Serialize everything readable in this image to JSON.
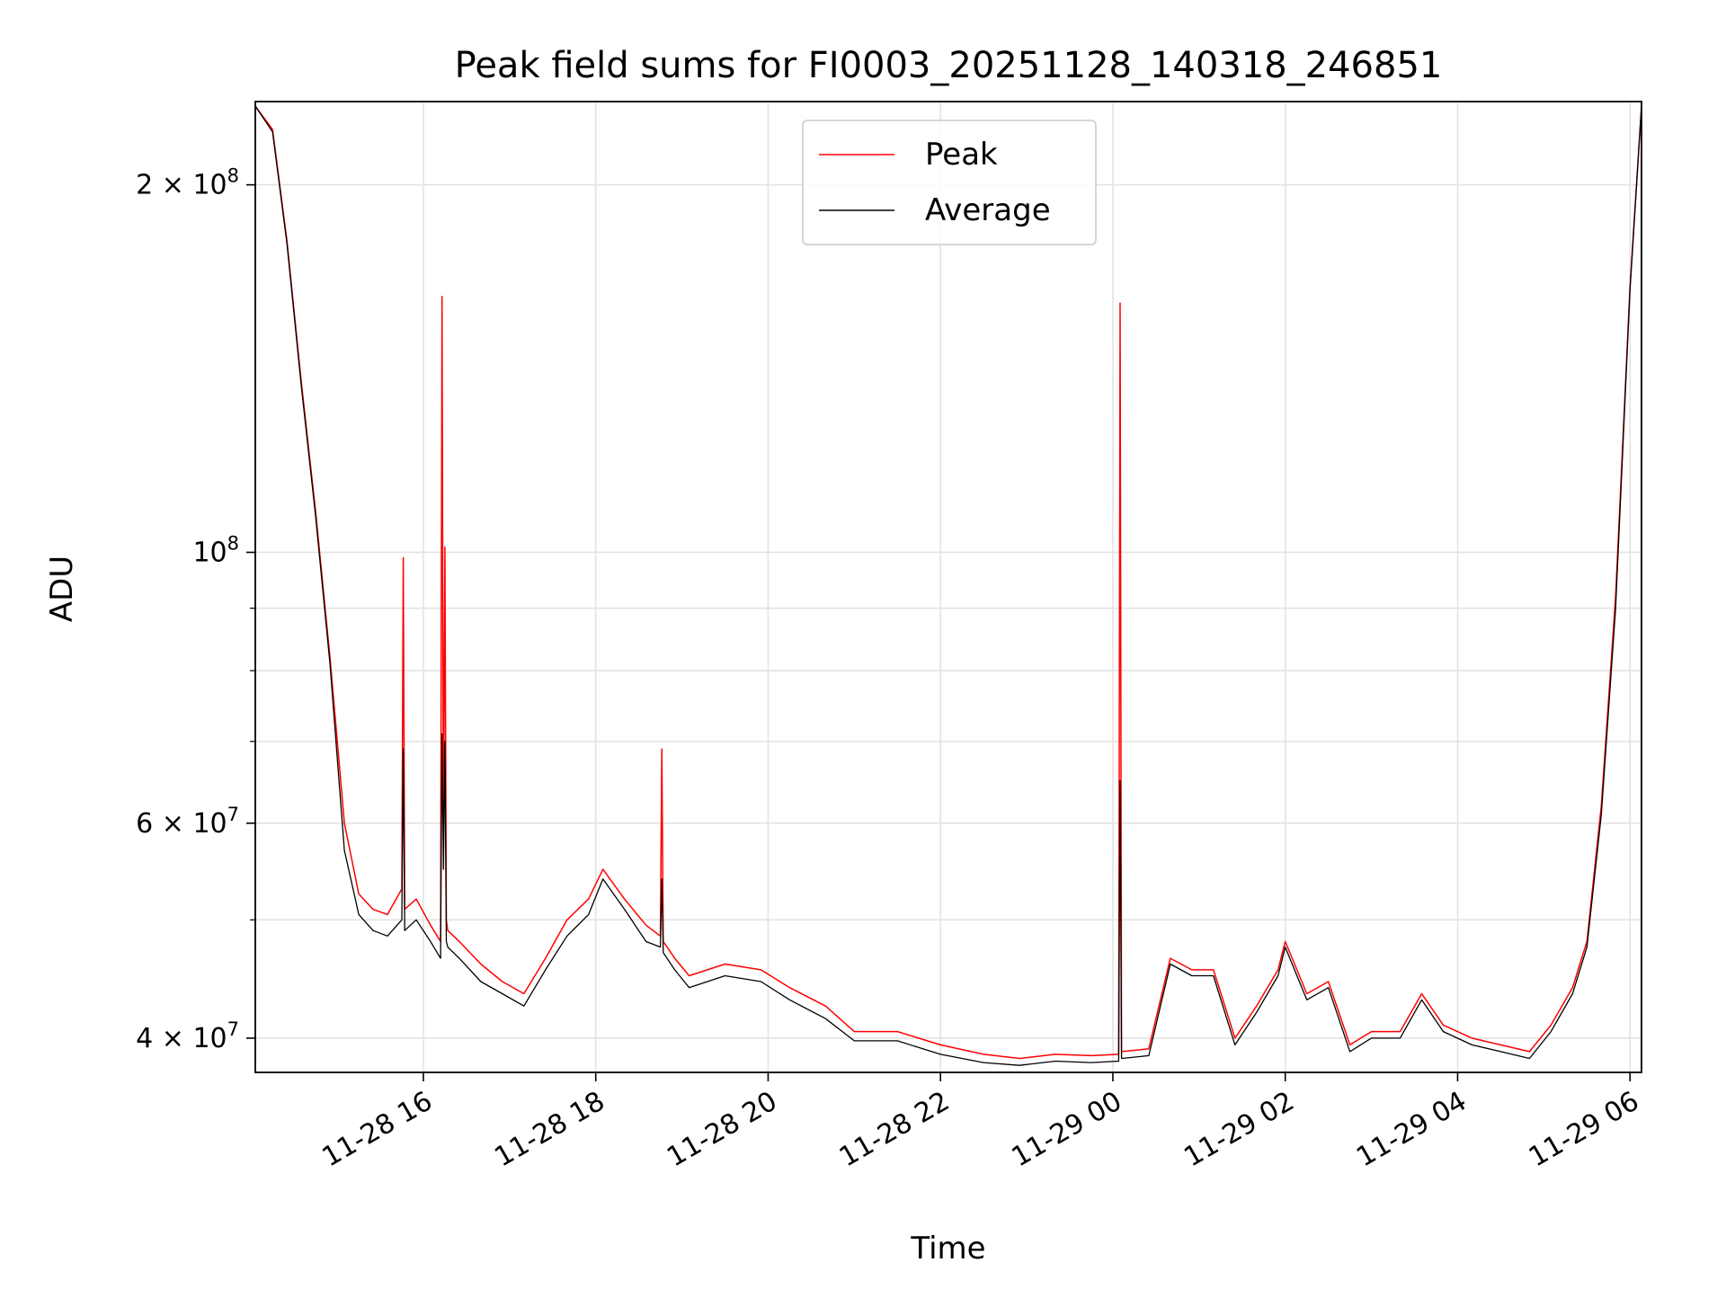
{
  "chart_data": {
    "type": "line",
    "title": "Peak field sums for FI0003_20251128_140318_246851",
    "xlabel": "Time",
    "ylabel": "ADU",
    "y_scale": "log",
    "ylim": [
      37500000,
      234000000
    ],
    "xlim": [
      "2025-11-28 14:03",
      "2025-11-29 06:08"
    ],
    "grid": true,
    "legend": "upper center",
    "x_ticks": [
      {
        "t": "2025-11-28 16:00",
        "label": "11-28 16"
      },
      {
        "t": "2025-11-28 18:00",
        "label": "11-28 18"
      },
      {
        "t": "2025-11-28 20:00",
        "label": "11-28 20"
      },
      {
        "t": "2025-11-28 22:00",
        "label": "11-28 22"
      },
      {
        "t": "2025-11-29 00:00",
        "label": "11-29 00"
      },
      {
        "t": "2025-11-29 02:00",
        "label": "11-29 02"
      },
      {
        "t": "2025-11-29 04:00",
        "label": "11-29 04"
      },
      {
        "t": "2025-11-29 06:00",
        "label": "11-29 06"
      }
    ],
    "y_major_ticks": [
      {
        "value": 40000000,
        "mant": "4",
        "exp": "7"
      },
      {
        "value": 60000000,
        "mant": "6",
        "exp": "7"
      },
      {
        "value": 100000000,
        "mant": "",
        "exp": "8"
      },
      {
        "value": 200000000,
        "mant": "2",
        "exp": "8"
      }
    ],
    "y_minor_ticks": [
      50000000,
      70000000,
      80000000,
      90000000
    ],
    "series": [
      {
        "name": "Peak",
        "color": "#ff0000",
        "x": [
          "2025-11-28 14:03",
          "2025-11-28 14:15",
          "2025-11-28 14:25",
          "2025-11-28 14:35",
          "2025-11-28 14:45",
          "2025-11-28 14:55",
          "2025-11-28 15:05",
          "2025-11-28 15:15",
          "2025-11-28 15:25",
          "2025-11-28 15:35",
          "2025-11-28 15:45",
          "2025-11-28 15:46",
          "2025-11-28 15:47",
          "2025-11-28 15:55",
          "2025-11-28 16:05",
          "2025-11-28 16:12",
          "2025-11-28 16:13",
          "2025-11-28 16:14",
          "2025-11-28 16:15",
          "2025-11-28 16:16",
          "2025-11-28 16:17",
          "2025-11-28 16:25",
          "2025-11-28 16:40",
          "2025-11-28 16:55",
          "2025-11-28 17:10",
          "2025-11-28 17:25",
          "2025-11-28 17:40",
          "2025-11-28 17:55",
          "2025-11-28 18:05",
          "2025-11-28 18:20",
          "2025-11-28 18:35",
          "2025-11-28 18:45",
          "2025-11-28 18:46",
          "2025-11-28 18:47",
          "2025-11-28 18:55",
          "2025-11-28 19:05",
          "2025-11-28 19:30",
          "2025-11-28 19:55",
          "2025-11-28 20:15",
          "2025-11-28 20:40",
          "2025-11-28 21:00",
          "2025-11-28 21:30",
          "2025-11-28 22:00",
          "2025-11-28 22:30",
          "2025-11-28 22:55",
          "2025-11-28 23:20",
          "2025-11-28 23:45",
          "2025-11-29 00:04",
          "2025-11-29 00:05",
          "2025-11-29 00:06",
          "2025-11-29 00:25",
          "2025-11-29 00:40",
          "2025-11-29 00:55",
          "2025-11-29 01:10",
          "2025-11-29 01:25",
          "2025-11-29 01:40",
          "2025-11-29 01:55",
          "2025-11-29 02:00",
          "2025-11-29 02:15",
          "2025-11-29 02:30",
          "2025-11-29 02:45",
          "2025-11-29 03:00",
          "2025-11-29 03:20",
          "2025-11-29 03:35",
          "2025-11-29 03:50",
          "2025-11-29 04:10",
          "2025-11-29 04:30",
          "2025-11-29 04:50",
          "2025-11-29 05:05",
          "2025-11-29 05:20",
          "2025-11-29 05:30",
          "2025-11-29 05:40",
          "2025-11-29 05:50",
          "2025-11-29 06:00",
          "2025-11-29 06:08"
        ],
        "values": [
          232000000,
          222000000,
          180000000,
          138000000,
          108000000,
          82000000,
          60000000,
          52500000,
          51000000,
          50500000,
          53000000,
          99000000,
          51000000,
          52000000,
          49500000,
          48000000,
          162000000,
          58000000,
          101000000,
          50000000,
          49000000,
          48000000,
          46000000,
          44500000,
          43500000,
          46500000,
          50000000,
          52000000,
          55000000,
          52000000,
          49500000,
          48500000,
          69000000,
          48000000,
          46500000,
          45000000,
          46000000,
          45500000,
          44000000,
          42500000,
          40500000,
          40500000,
          39500000,
          38800000,
          38500000,
          38800000,
          38700000,
          38800000,
          160000000,
          39000000,
          39200000,
          46500000,
          45500000,
          45500000,
          40000000,
          42500000,
          45500000,
          48000000,
          43500000,
          44500000,
          39500000,
          40500000,
          40500000,
          43500000,
          41000000,
          40000000,
          39500000,
          39000000,
          41000000,
          44000000,
          48000000,
          62000000,
          92000000,
          165000000,
          232000000
        ]
      },
      {
        "name": "Average",
        "color": "#000000",
        "x": [
          "2025-11-28 14:03",
          "2025-11-28 14:15",
          "2025-11-28 14:25",
          "2025-11-28 14:35",
          "2025-11-28 14:45",
          "2025-11-28 14:55",
          "2025-11-28 15:05",
          "2025-11-28 15:15",
          "2025-11-28 15:25",
          "2025-11-28 15:35",
          "2025-11-28 15:45",
          "2025-11-28 15:46",
          "2025-11-28 15:47",
          "2025-11-28 15:55",
          "2025-11-28 16:05",
          "2025-11-28 16:12",
          "2025-11-28 16:13",
          "2025-11-28 16:14",
          "2025-11-28 16:15",
          "2025-11-28 16:16",
          "2025-11-28 16:17",
          "2025-11-28 16:25",
          "2025-11-28 16:40",
          "2025-11-28 16:55",
          "2025-11-28 17:10",
          "2025-11-28 17:25",
          "2025-11-28 17:40",
          "2025-11-28 17:55",
          "2025-11-28 18:05",
          "2025-11-28 18:20",
          "2025-11-28 18:35",
          "2025-11-28 18:45",
          "2025-11-28 18:46",
          "2025-11-28 18:47",
          "2025-11-28 18:55",
          "2025-11-28 19:05",
          "2025-11-28 19:30",
          "2025-11-28 19:55",
          "2025-11-28 20:15",
          "2025-11-28 20:40",
          "2025-11-28 21:00",
          "2025-11-28 21:30",
          "2025-11-28 22:00",
          "2025-11-28 22:30",
          "2025-11-28 22:55",
          "2025-11-28 23:20",
          "2025-11-28 23:45",
          "2025-11-29 00:04",
          "2025-11-29 00:05",
          "2025-11-29 00:06",
          "2025-11-29 00:25",
          "2025-11-29 00:40",
          "2025-11-29 00:55",
          "2025-11-29 01:10",
          "2025-11-29 01:25",
          "2025-11-29 01:40",
          "2025-11-29 01:55",
          "2025-11-29 02:00",
          "2025-11-29 02:15",
          "2025-11-29 02:30",
          "2025-11-29 02:45",
          "2025-11-29 03:00",
          "2025-11-29 03:20",
          "2025-11-29 03:35",
          "2025-11-29 03:50",
          "2025-11-29 04:10",
          "2025-11-29 04:30",
          "2025-11-29 04:50",
          "2025-11-29 05:05",
          "2025-11-29 05:20",
          "2025-11-29 05:30",
          "2025-11-29 05:40",
          "2025-11-29 05:50",
          "2025-11-29 06:00",
          "2025-11-29 06:08"
        ],
        "values": [
          232000000,
          221000000,
          179000000,
          137000000,
          107000000,
          81000000,
          57000000,
          50500000,
          49000000,
          48500000,
          50000000,
          69000000,
          49000000,
          50000000,
          48000000,
          46500000,
          71000000,
          55000000,
          70000000,
          48000000,
          47500000,
          46500000,
          44500000,
          43500000,
          42500000,
          45500000,
          48500000,
          50500000,
          54000000,
          51000000,
          48000000,
          47500000,
          54000000,
          47000000,
          45500000,
          44000000,
          45000000,
          44500000,
          43000000,
          41500000,
          39800000,
          39800000,
          38800000,
          38200000,
          38000000,
          38300000,
          38200000,
          38300000,
          65000000,
          38500000,
          38700000,
          46000000,
          45000000,
          45000000,
          39500000,
          42000000,
          45000000,
          47500000,
          43000000,
          44000000,
          39000000,
          40000000,
          40000000,
          43000000,
          40500000,
          39500000,
          39000000,
          38500000,
          40500000,
          43500000,
          47500000,
          61000000,
          90000000,
          164000000,
          232000000
        ]
      }
    ]
  }
}
